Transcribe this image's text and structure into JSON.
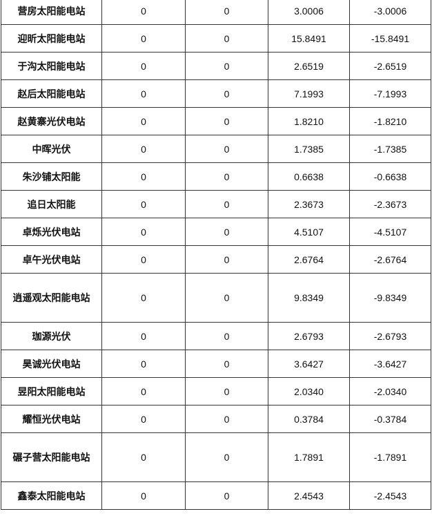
{
  "table": {
    "rows": [
      {
        "name": "营房太阳能电站",
        "c2": "0",
        "c3": "0",
        "c4": "3.0006",
        "c5": "-3.0006"
      },
      {
        "name": "迎昕太阳能电站",
        "c2": "0",
        "c3": "0",
        "c4": "15.8491",
        "c5": "-15.8491"
      },
      {
        "name": "于沟太阳能电站",
        "c2": "0",
        "c3": "0",
        "c4": "2.6519",
        "c5": "-2.6519"
      },
      {
        "name": "赵后太阳能电站",
        "c2": "0",
        "c3": "0",
        "c4": "7.1993",
        "c5": "-7.1993"
      },
      {
        "name": "赵黄寨光伏电站",
        "c2": "0",
        "c3": "0",
        "c4": "1.8210",
        "c5": "-1.8210"
      },
      {
        "name": "中晖光伏",
        "c2": "0",
        "c3": "0",
        "c4": "1.7385",
        "c5": "-1.7385"
      },
      {
        "name": "朱沙铺太阳能",
        "c2": "0",
        "c3": "0",
        "c4": "0.6638",
        "c5": "-0.6638"
      },
      {
        "name": "追日太阳能",
        "c2": "0",
        "c3": "0",
        "c4": "2.3673",
        "c5": "-2.3673"
      },
      {
        "name": "卓烁光伏电站",
        "c2": "0",
        "c3": "0",
        "c4": "4.5107",
        "c5": "-4.5107"
      },
      {
        "name": "卓午光伏电站",
        "c2": "0",
        "c3": "0",
        "c4": "2.6764",
        "c5": "-2.6764"
      },
      {
        "name": "逍遥观太阳能电站",
        "c2": "0",
        "c3": "0",
        "c4": "9.8349",
        "c5": "-9.8349"
      },
      {
        "name": "珈源光伏",
        "c2": "0",
        "c3": "0",
        "c4": "2.6793",
        "c5": "-2.6793"
      },
      {
        "name": "昊诚光伏电站",
        "c2": "0",
        "c3": "0",
        "c4": "3.6427",
        "c5": "-3.6427"
      },
      {
        "name": "昱阳太阳能电站",
        "c2": "0",
        "c3": "0",
        "c4": "2.0340",
        "c5": "-2.0340"
      },
      {
        "name": "耀恒光伏电站",
        "c2": "0",
        "c3": "0",
        "c4": "0.3784",
        "c5": "-0.3784"
      },
      {
        "name": "碾子营太阳能电站",
        "c2": "0",
        "c3": "0",
        "c4": "1.7891",
        "c5": "-1.7891"
      },
      {
        "name": "鑫泰太阳能电站",
        "c2": "0",
        "c3": "0",
        "c4": "2.4543",
        "c5": "-2.4543"
      }
    ]
  }
}
